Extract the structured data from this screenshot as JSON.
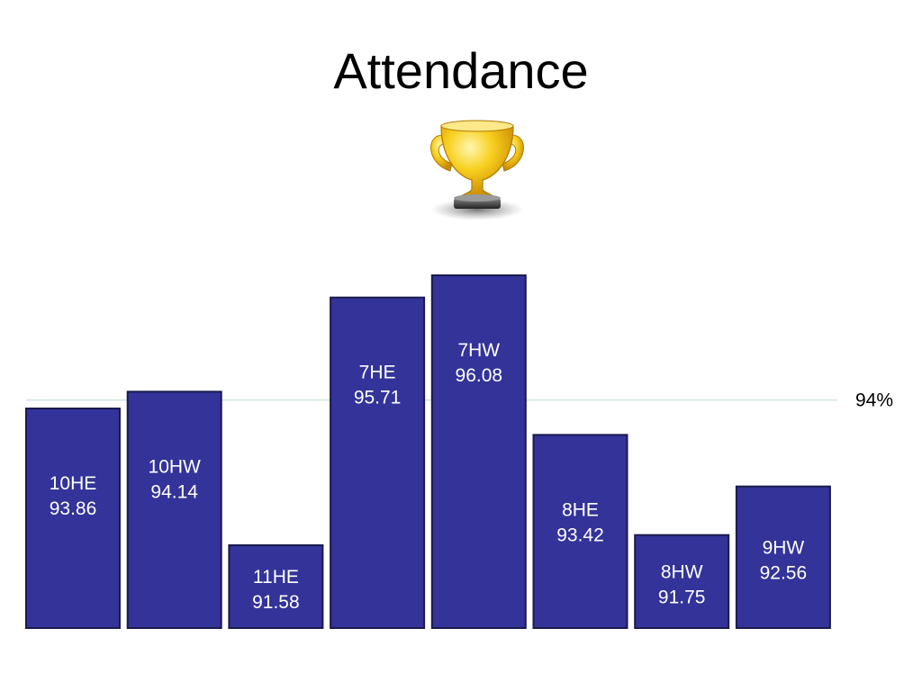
{
  "title": "Attendance",
  "trophy": {
    "icon": "trophy-icon"
  },
  "colors": {
    "bar_fill": "#333399",
    "bar_stroke": "#1a1a4d",
    "reference_line": "#cfe3e3",
    "trophy_gold": "#f2c014",
    "trophy_base": "#555555"
  },
  "chart_data": {
    "type": "bar",
    "categories": [
      "10HE",
      "10HW",
      "11HE",
      "7HE",
      "7HW",
      "8HE",
      "8HW",
      "9HW"
    ],
    "values": [
      93.86,
      94.14,
      91.58,
      95.71,
      96.08,
      93.42,
      91.75,
      92.56
    ],
    "data_labels": [
      "93.86",
      "94.14",
      "91.58",
      "95.71",
      "96.08",
      "93.42",
      "91.75",
      "92.56"
    ],
    "reference_line": {
      "value": 94,
      "label": "94%"
    },
    "title": "Attendance",
    "xlabel": "",
    "ylabel": "",
    "ylim": [
      90.2,
      96.5
    ],
    "grid": false,
    "legend": "none"
  }
}
